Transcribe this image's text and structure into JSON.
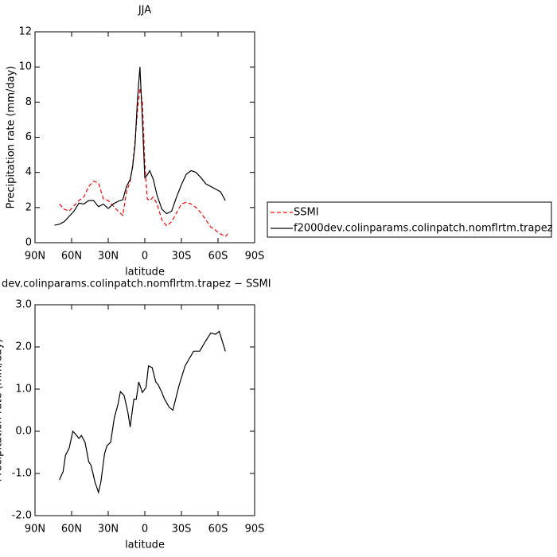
{
  "chart_data": [
    {
      "type": "line",
      "title": "JJA",
      "xlabel": "latitude",
      "ylabel": "Precipitation rate (mm/day)",
      "x": [
        74,
        70,
        66,
        62,
        58,
        54,
        50,
        46,
        42,
        38,
        34,
        30,
        26,
        22,
        18,
        15,
        12,
        10,
        8,
        6,
        4,
        2,
        0,
        -2,
        -4,
        -7,
        -10,
        -14,
        -18,
        -22,
        -26,
        -30,
        -34,
        -38,
        -42,
        -46,
        -50,
        -54,
        -58,
        -62,
        -66,
        -68
      ],
      "xlim": [
        90,
        -90
      ],
      "xticks": [
        {
          "value": 90,
          "label": "90N"
        },
        {
          "value": 60,
          "label": "60N"
        },
        {
          "value": 30,
          "label": "30N"
        },
        0,
        {
          "value": -30,
          "label": "30S"
        },
        {
          "value": -60,
          "label": "60S"
        },
        {
          "value": -90,
          "label": "90S"
        }
      ],
      "ylim": [
        0,
        12
      ],
      "yticks": [
        0,
        2,
        4,
        6,
        8,
        10,
        12
      ],
      "legend": "outside-right",
      "series": [
        {
          "name": "SSMI",
          "color": "#ff0000",
          "line_style": "dashed",
          "values": [
            null,
            2.2,
            1.9,
            1.8,
            2.1,
            2.4,
            2.6,
            3.2,
            3.5,
            3.4,
            2.5,
            2.4,
            2.1,
            1.8,
            1.55,
            2.9,
            3.5,
            4.4,
            5.8,
            7.5,
            8.8,
            8.0,
            4.5,
            2.5,
            2.4,
            2.6,
            2.2,
            1.3,
            0.95,
            1.2,
            1.7,
            2.2,
            2.3,
            2.2,
            2.0,
            1.7,
            1.3,
            0.9,
            0.7,
            0.5,
            0.35,
            0.5
          ]
        },
        {
          "name": "f2000dev.colinparams.colinpatch.nomflrtm.trapez",
          "color": "#000000",
          "line_style": "solid",
          "values": [
            1.0,
            1.05,
            1.2,
            1.5,
            1.8,
            2.25,
            2.2,
            2.4,
            2.4,
            2.05,
            2.2,
            1.95,
            2.2,
            2.35,
            2.45,
            3.2,
            3.6,
            4.3,
            5.6,
            8.2,
            10.0,
            7.0,
            3.7,
            3.85,
            4.1,
            3.6,
            2.7,
            1.9,
            1.65,
            1.8,
            2.6,
            3.3,
            3.9,
            4.1,
            4.0,
            3.7,
            3.35,
            3.2,
            3.05,
            2.9,
            2.4,
            null
          ]
        }
      ]
    },
    {
      "type": "line",
      "title": "dev.colinparams.colinpatch.nomflrtm.trapez − SSMI",
      "xlabel": "latitude",
      "ylabel": "Precipitation rate (mm/day)",
      "x": [
        70,
        67,
        65,
        62,
        59,
        57,
        54,
        52,
        49,
        46,
        44,
        41,
        38,
        36,
        33,
        31,
        28,
        25,
        22,
        20,
        17,
        14,
        12,
        9,
        7,
        5,
        2,
        -1,
        -3,
        -6,
        -9,
        -11,
        -14,
        -16,
        -20,
        -23,
        -28,
        -33,
        -40,
        -45,
        -49,
        -54,
        -58,
        -61,
        -66
      ],
      "xlim": [
        90,
        -90
      ],
      "xticks": [
        {
          "value": 90,
          "label": "90N"
        },
        {
          "value": 60,
          "label": "60N"
        },
        {
          "value": 30,
          "label": "30N"
        },
        0,
        {
          "value": -30,
          "label": "30S"
        },
        {
          "value": -60,
          "label": "60S"
        },
        {
          "value": -90,
          "label": "90S"
        }
      ],
      "ylim": [
        -2,
        3
      ],
      "yticks": [
        {
          "value": -2,
          "label": "-2.0"
        },
        {
          "value": -1,
          "label": "-1.0"
        },
        {
          "value": 0,
          "label": "0.0"
        },
        {
          "value": 1,
          "label": "1.0"
        },
        {
          "value": 2,
          "label": "2.0"
        },
        {
          "value": 3,
          "label": "3.0"
        }
      ],
      "series": [
        {
          "color": "#000000",
          "line_style": "solid",
          "values": [
            -1.15,
            -0.96,
            -0.57,
            -0.4,
            0.0,
            -0.06,
            -0.17,
            -0.1,
            -0.26,
            -0.72,
            -0.81,
            -1.19,
            -1.45,
            -1.2,
            -0.53,
            -0.34,
            -0.26,
            0.32,
            0.64,
            0.94,
            0.85,
            0.47,
            0.1,
            0.76,
            0.76,
            1.17,
            0.92,
            1.04,
            1.55,
            1.51,
            1.17,
            1.1,
            0.92,
            0.77,
            0.57,
            0.5,
            1.08,
            1.55,
            1.9,
            1.9,
            2.1,
            2.33,
            2.3,
            2.37,
            1.9
          ]
        }
      ]
    }
  ]
}
